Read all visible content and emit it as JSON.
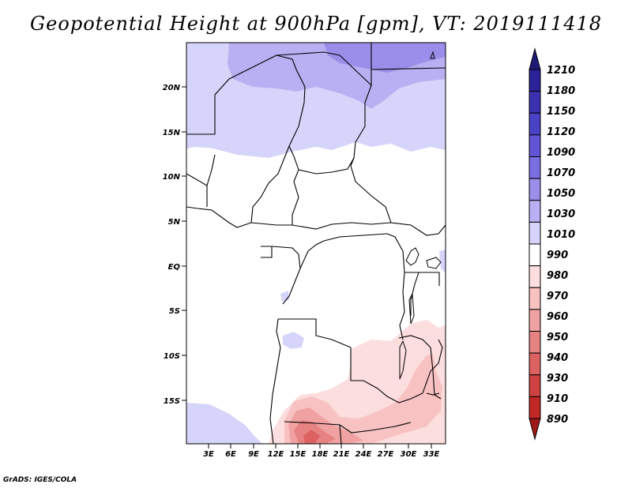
{
  "title": "Geopotential Height at 900hPa [gpm], VT: 2019111418",
  "lat_labels": [
    "20N",
    "15N",
    "10N",
    "5N",
    "EQ",
    "5S",
    "10S",
    "15S"
  ],
  "lon_labels": [
    "3E",
    "6E",
    "9E",
    "12E",
    "15E",
    "18E",
    "21E",
    "24E",
    "27E",
    "30E",
    "33E"
  ],
  "colorbar": {
    "levels": [
      "1210",
      "1180",
      "1150",
      "1120",
      "1090",
      "1070",
      "1050",
      "1030",
      "1010",
      "990",
      "980",
      "970",
      "960",
      "950",
      "940",
      "930",
      "910",
      "890"
    ],
    "colors": [
      "#1e1a78",
      "#2a2296",
      "#3a30b0",
      "#4a42c4",
      "#6254d6",
      "#7a6ee2",
      "#9a8eea",
      "#b8b0f2",
      "#d6d4fa",
      "#ffffff",
      "#fcdede",
      "#f8c2c2",
      "#f0a2a2",
      "#e68282",
      "#dc6262",
      "#d04242",
      "#c02828",
      "#a01818"
    ]
  },
  "footer": "GrADS: IGES/COLA"
}
